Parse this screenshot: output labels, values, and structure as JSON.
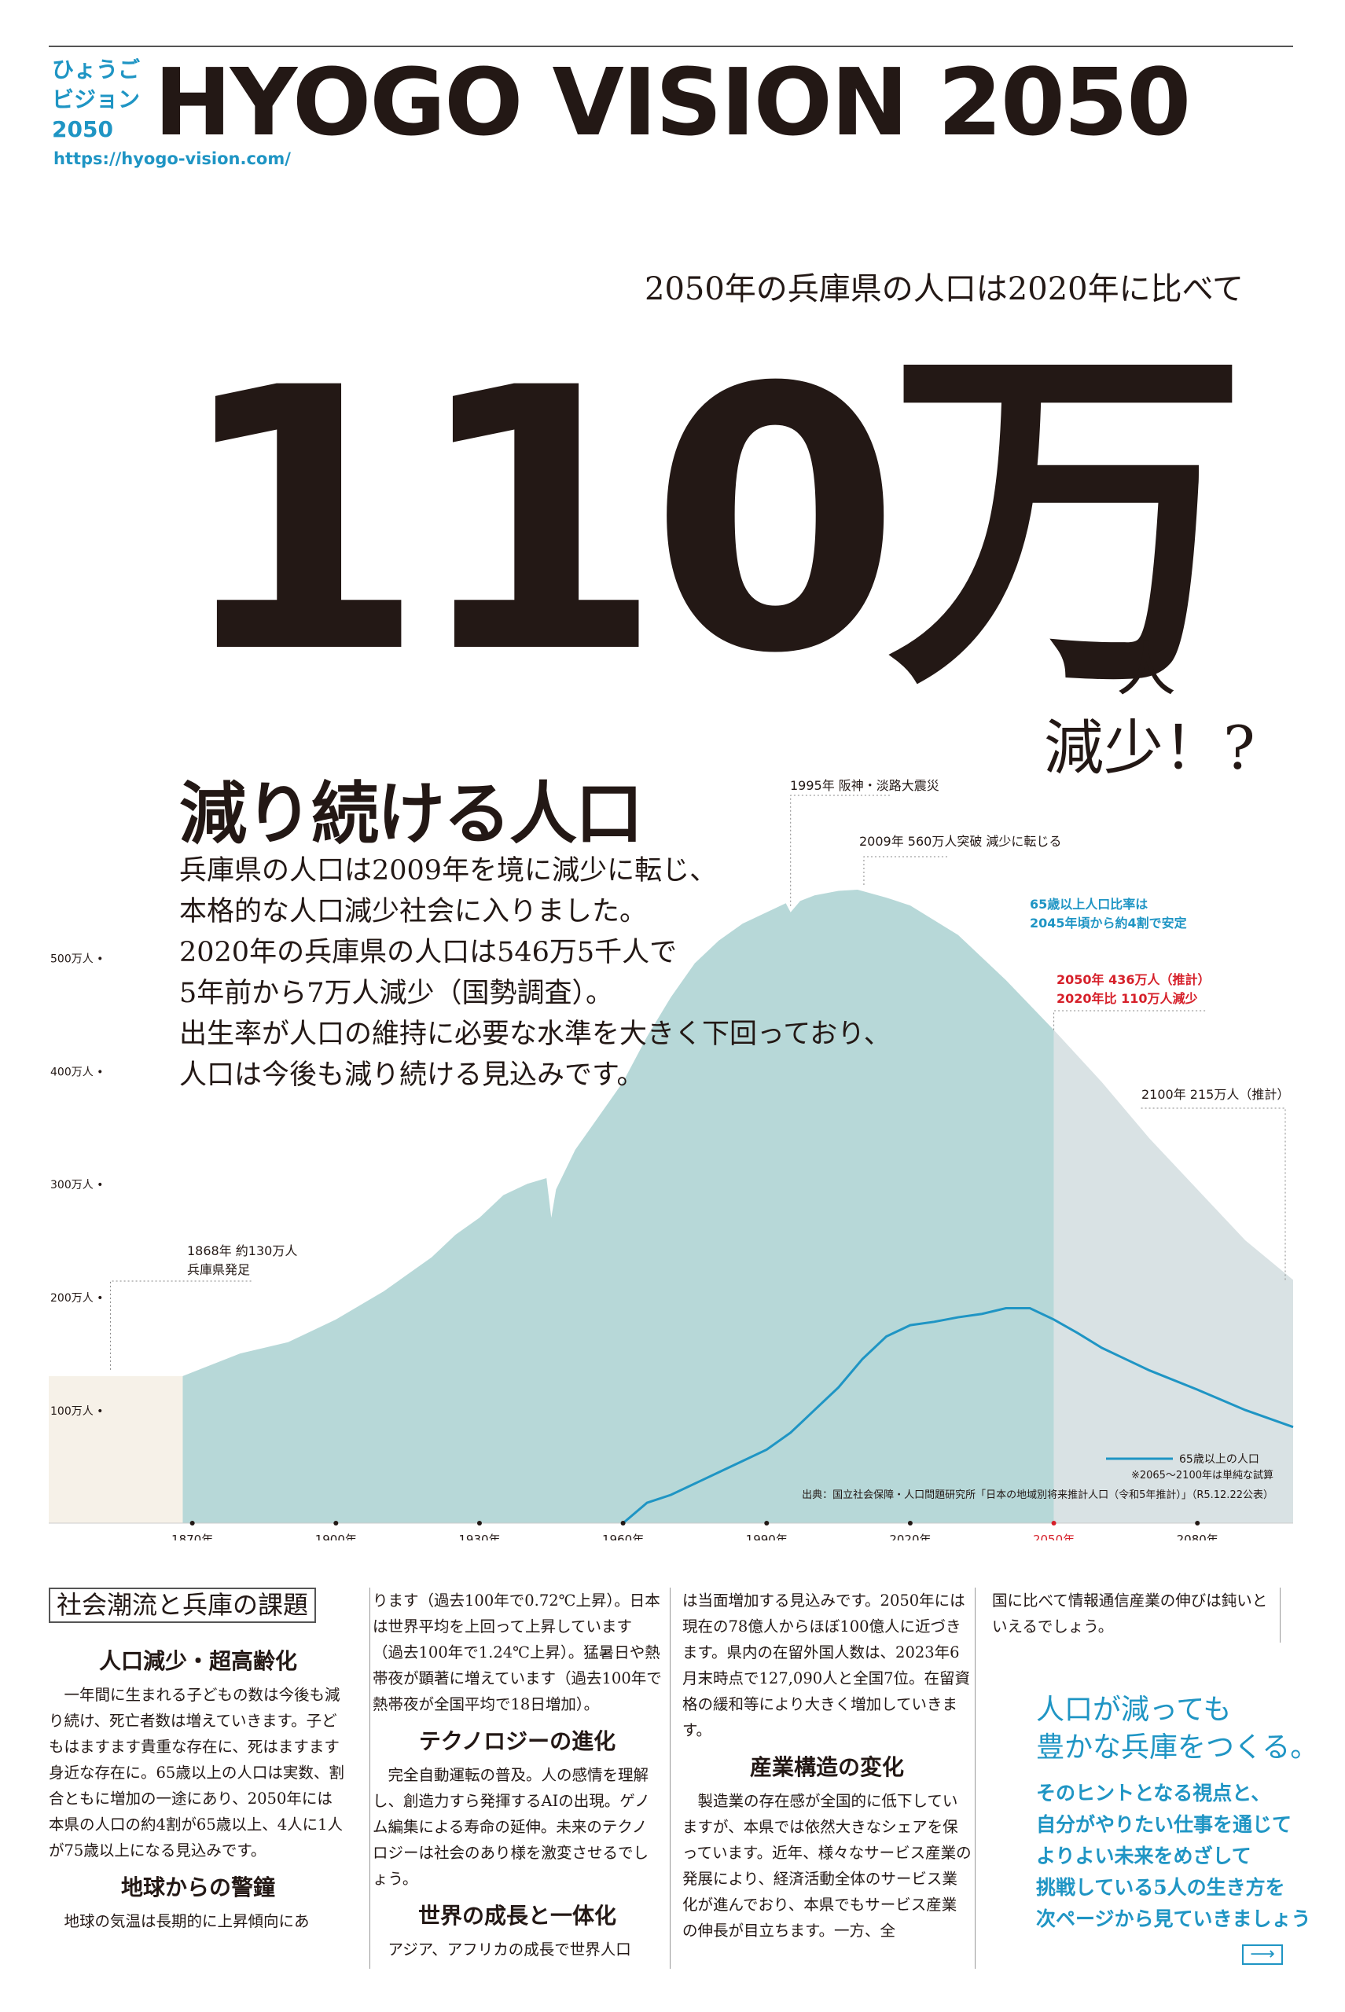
{
  "header": {
    "logo_lines": [
      "ひょうご",
      "ビジョン",
      "2050"
    ],
    "title": "HYOGO VISION 2050",
    "url": "https://hyogo-vision.com/"
  },
  "headline": {
    "pre": "2050年の兵庫県の人口は2020年に比べて",
    "number": "110万",
    "suffix1": "人",
    "suffix2": "減少！?"
  },
  "section": {
    "title": "減り続ける人口",
    "intro_lines": [
      "兵庫県の人口は2009年を境に減少に転じ、",
      "本格的な人口減少社会に入りました。",
      "2020年の兵庫県の人口は546万5千人で",
      "5年前から7万人減少（国勢調査）。",
      "出生率が人口の維持に必要な水準を大きく下回っており、",
      "人口は今後も減り続ける見込みです。"
    ]
  },
  "chart_data": {
    "type": "area",
    "x_ticks": [
      "1870年",
      "1900年",
      "1930年",
      "1960年",
      "1990年",
      "2020年",
      "2050年",
      "2080年"
    ],
    "y_ticks": [
      "100万人",
      "200万人",
      "300万人",
      "400万人",
      "500万人"
    ],
    "ylim": [
      0,
      560
    ],
    "xlim": [
      1840,
      2100
    ],
    "highlight_tick": "2050年",
    "series": [
      {
        "name": "",
        "points": [
          [
            1840,
            130
          ],
          [
            1868,
            130
          ],
          [
            1880,
            150
          ],
          [
            1890,
            160
          ],
          [
            1900,
            180
          ],
          [
            1910,
            205
          ],
          [
            1920,
            235
          ],
          [
            1925,
            255
          ],
          [
            1930,
            270
          ],
          [
            1935,
            290
          ],
          [
            1940,
            300
          ],
          [
            1944,
            305
          ],
          [
            1945,
            270
          ],
          [
            1946,
            295
          ],
          [
            1950,
            330
          ],
          [
            1955,
            360
          ],
          [
            1960,
            390
          ],
          [
            1965,
            430
          ],
          [
            1970,
            465
          ],
          [
            1975,
            495
          ],
          [
            1980,
            515
          ],
          [
            1985,
            530
          ],
          [
            1990,
            540
          ],
          [
            1994,
            548
          ],
          [
            1995,
            540
          ],
          [
            1997,
            550
          ],
          [
            2000,
            555
          ],
          [
            2005,
            559
          ],
          [
            2009,
            560
          ],
          [
            2015,
            553
          ],
          [
            2020,
            546
          ],
          [
            2030,
            520
          ],
          [
            2040,
            480
          ],
          [
            2050,
            436
          ],
          [
            2060,
            390
          ],
          [
            2070,
            340
          ],
          [
            2080,
            295
          ],
          [
            2090,
            250
          ],
          [
            2100,
            215
          ]
        ]
      },
      {
        "name": "65歳以上の人口",
        "points": [
          [
            1960,
            0
          ],
          [
            1965,
            18
          ],
          [
            1970,
            25
          ],
          [
            1975,
            35
          ],
          [
            1980,
            45
          ],
          [
            1985,
            55
          ],
          [
            1990,
            65
          ],
          [
            1995,
            80
          ],
          [
            2000,
            100
          ],
          [
            2005,
            120
          ],
          [
            2010,
            145
          ],
          [
            2015,
            165
          ],
          [
            2020,
            175
          ],
          [
            2025,
            178
          ],
          [
            2030,
            182
          ],
          [
            2035,
            185
          ],
          [
            2040,
            190
          ],
          [
            2045,
            190
          ],
          [
            2050,
            180
          ],
          [
            2055,
            168
          ],
          [
            2060,
            155
          ],
          [
            2065,
            145
          ],
          [
            2070,
            135
          ],
          [
            2080,
            118
          ],
          [
            2090,
            100
          ],
          [
            2100,
            85
          ]
        ]
      }
    ],
    "annotations": [
      {
        "text": "1995年 阪神・淡路大震災",
        "x": 1995,
        "y": 540
      },
      {
        "text": "2009年 560万人突破 減少に転じる",
        "x": 2009,
        "y": 560
      },
      {
        "text": "65歳以上人口比率は",
        "text2": "2045年頃から約4割で安定",
        "color": "#1f95c4"
      },
      {
        "text": "2050年 436万人（推計）",
        "text2": "2020年比 110万人減少",
        "color": "#d6202a",
        "x": 2050,
        "y": 436
      },
      {
        "text": "2100年 215万人（推計）",
        "x": 2100,
        "y": 215
      },
      {
        "text": "1868年 約130万人",
        "text2": "兵庫県発足",
        "x": 1868,
        "y": 130
      }
    ],
    "legend": "65歳以上の人口",
    "note": "※2065～2100年は単純な試算",
    "source": "出典：国立社会保障・人口問題研究所「日本の地域別将来推計人口（令和5年推計）」（R5.12.22公表）",
    "colors": {
      "area": "#b7d8d8",
      "past": "#f6f1e8",
      "projection": "#d9e2e4",
      "line": "#1f95c4",
      "highlight": "#d6202a"
    }
  },
  "columns": {
    "box_title": "社会潮流と兵庫の課題",
    "h1": "人口減少・超高齢化",
    "p1": "一年間に生まれる子どもの数は今後も減り続け、死亡者数は増えていきます。子どもはますます貴重な存在に、死はますます身近な存在に。65歳以上の人口は実数、割合ともに増加の一途にあり、2050年には本県の人口の約4割が65歳以上、4人に1人が75歳以上になる見込みです。",
    "h2": "地球からの警鐘",
    "p2": "地球の気温は長期的に上昇傾向にあ",
    "p3": "ります（過去100年で0.72℃上昇）。日本は世界平均を上回って上昇しています（過去100年で1.24℃上昇）。猛暑日や熱帯夜が顕著に増えています（過去100年で熱帯夜が全国平均で18日増加）。",
    "h3": "テクノロジーの進化",
    "p4": "完全自動運転の普及。人の感情を理解し、創造力すら発揮するAIの出現。ゲノム編集による寿命の延伸。未来のテクノロジーは社会のあり様を激変させるでしょう。",
    "h4": "世界の成長と一体化",
    "p5": "アジア、アフリカの成長で世界人口",
    "p6": "は当面増加する見込みです。2050年には現在の78億人からほぼ100億人に近づきます。県内の在留外国人数は、2023年6月末時点で127,090人と全国7位。在留資格の緩和等により大きく増加していきます。",
    "h5": "産業構造の変化",
    "p7": "製造業の存在感が全国的に低下していますが、本県では依然大きなシェアを保っています。近年、様々なサービス産業の発展により、経済活動全体のサービス業化が進んでおり、本県でもサービス産業の伸長が目立ちます。一方、全",
    "p8": "国に比べて情報通信産業の伸びは鈍いといえるでしょう。"
  },
  "callout": {
    "line1": "人口が減っても",
    "line2": "豊かな兵庫をつくる。",
    "sub": [
      "そのヒントとなる視点と、",
      "自分がやりたい仕事を通じて",
      "よりよい未来をめざして",
      "挑戦している5人の生き方を",
      "次ページから見ていきましょう"
    ],
    "arrow": "⟶"
  }
}
